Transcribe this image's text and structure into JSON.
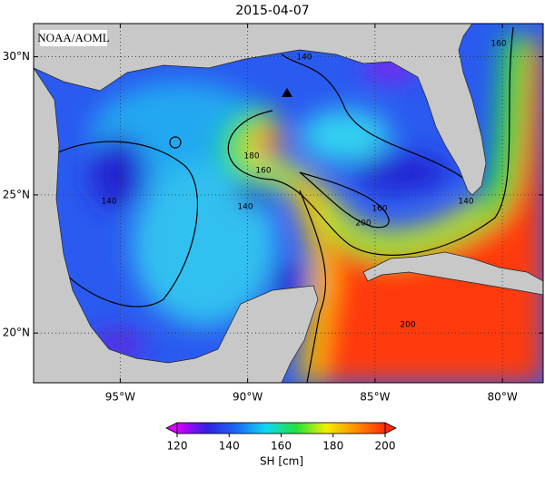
{
  "title": "2015-04-07",
  "credit": "NOAA/AOML",
  "map": {
    "lon_range": [
      -98.4,
      -78.4
    ],
    "lat_range": [
      18.2,
      31.2
    ],
    "lat_ticks": [
      {
        "value": 30,
        "label": "30°N"
      },
      {
        "value": 25,
        "label": "25°N"
      },
      {
        "value": 20,
        "label": "20°N"
      }
    ],
    "lon_ticks": [
      {
        "value": -95,
        "label": "95°W"
      },
      {
        "value": -90,
        "label": "90°W"
      },
      {
        "value": -85,
        "label": "85°W"
      },
      {
        "value": -80,
        "label": "80°W"
      }
    ],
    "grid": true
  },
  "contour_labels": [
    "140",
    "160",
    "180",
    "160",
    "140",
    "140",
    "200",
    "160",
    "200",
    "140"
  ],
  "colorbar": {
    "label": "SH [cm]",
    "lim": [
      120,
      200
    ],
    "ticks": [
      120,
      140,
      160,
      180,
      200
    ],
    "colors": [
      "#d800ff",
      "#3020e0",
      "#1a6af5",
      "#10d8f0",
      "#20e040",
      "#f0f000",
      "#ff9000",
      "#ff2a10"
    ]
  }
}
